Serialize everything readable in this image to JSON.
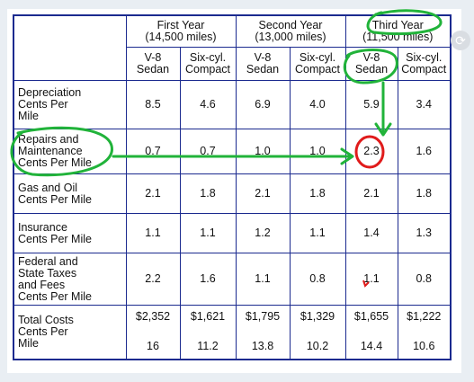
{
  "columns": {
    "groups": [
      {
        "title": "First Year",
        "miles": "(14,500 miles)"
      },
      {
        "title": "Second Year",
        "miles": "(13,000 miles)"
      },
      {
        "title": "Third Year",
        "miles": "(11,500 miles)"
      }
    ],
    "sub": [
      {
        "line1": "V-8",
        "line2": "Sedan"
      },
      {
        "line1": "Six-cyl.",
        "line2": "Compact"
      }
    ]
  },
  "rows": [
    {
      "label": [
        "Depreciation",
        "Cents Per",
        "Mile"
      ],
      "values": [
        "8.5",
        "4.6",
        "6.9",
        "4.0",
        "5.9",
        "3.4"
      ]
    },
    {
      "label": [
        "Repairs and",
        "Maintenance",
        "Cents Per Mile"
      ],
      "values": [
        "0.7",
        "0.7",
        "1.0",
        "1.0",
        "2.3",
        "1.6"
      ]
    },
    {
      "label": [
        "Gas and Oil",
        "Cents Per Mile"
      ],
      "values": [
        "2.1",
        "1.8",
        "2.1",
        "1.8",
        "2.1",
        "1.8"
      ]
    },
    {
      "label": [
        "Insurance",
        "Cents Per Mile"
      ],
      "values": [
        "1.1",
        "1.1",
        "1.2",
        "1.1",
        "1.4",
        "1.3"
      ]
    },
    {
      "label": [
        "Federal and",
        "State Taxes",
        "and Fees",
        "Cents Per Mile"
      ],
      "values": [
        "2.2",
        "1.6",
        "1.1",
        "0.8",
        "1.1",
        "0.8"
      ]
    }
  ],
  "total": {
    "label": [
      "Total Costs",
      "Cents Per",
      "Mile"
    ],
    "costs": [
      "$2,352",
      "$1,621",
      "$1,795",
      "$1,329",
      "$1,655",
      "$1,222"
    ],
    "cents": [
      "16",
      "11.2",
      "13.8",
      "10.2",
      "14.4",
      "10.6"
    ]
  },
  "annotation_colors": {
    "green": "#21b33a",
    "red": "#e01b1b"
  },
  "icons": {
    "corner": "rotate-icon"
  }
}
